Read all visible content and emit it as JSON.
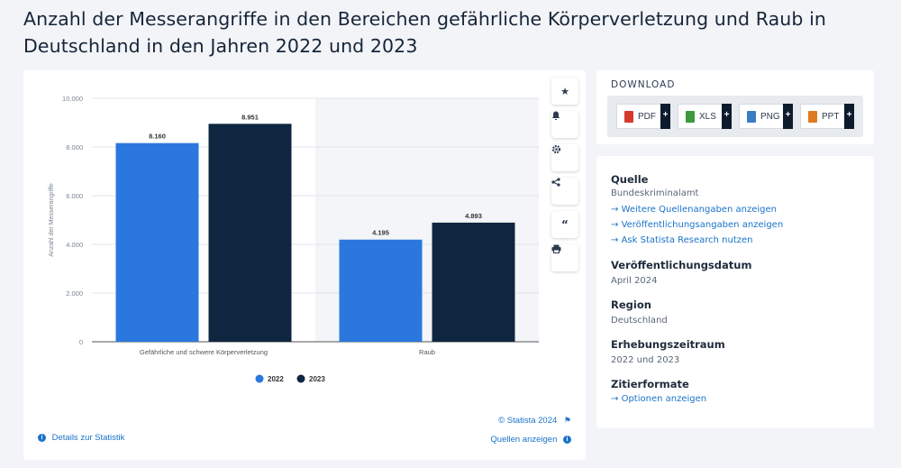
{
  "page": {
    "title": "Anzahl der Messerangriffe in den Bereichen gefährliche Körperverletzung und Raub in Deutschland in den Jahren 2022 und 2023"
  },
  "chart_data": {
    "type": "bar",
    "categories": [
      "Gefährliche und schwere Körperverletzung",
      "Raub"
    ],
    "series": [
      {
        "name": "2022",
        "values": [
          8160,
          4195
        ],
        "labels": [
          "8.160",
          "4.195"
        ],
        "color": "#2a78dd"
      },
      {
        "name": "2023",
        "values": [
          8951,
          4893
        ],
        "labels": [
          "8.951",
          "4.893"
        ],
        "color": "#0f2640"
      }
    ],
    "ylabel": "Anzahl der Messerangriffe",
    "xlabel": "",
    "ylim": [
      0,
      10000
    ],
    "yticks": [
      0,
      2000,
      4000,
      6000,
      8000,
      10000
    ],
    "ytick_labels": [
      "0",
      "2.000",
      "4.000",
      "6.000",
      "8.000",
      "10.000"
    ],
    "legend": [
      "2022",
      "2023"
    ],
    "legend_position": "bottom"
  },
  "chart_footer": {
    "copyright": "© Statista 2024",
    "details_link": "Details zur Statistik",
    "sources_link": "Quellen anzeigen"
  },
  "tools": [
    "star-icon",
    "bell-icon",
    "gear-icon",
    "share-icon",
    "quote-icon",
    "print-icon"
  ],
  "download": {
    "title": "DOWNLOAD",
    "buttons": [
      {
        "label": "PDF",
        "color": "#d33a2c"
      },
      {
        "label": "XLS",
        "color": "#3c9a3c"
      },
      {
        "label": "PNG",
        "color": "#3b7dc4"
      },
      {
        "label": "PPT",
        "color": "#e07a22"
      }
    ],
    "plus": "+"
  },
  "info": {
    "quelle_heading": "Quelle",
    "quelle_value": "Bundeskriminalamt",
    "links": [
      "Weitere Quellenangaben anzeigen",
      "Veröffentlichungsangaben anzeigen",
      "Ask Statista Research nutzen"
    ],
    "pub_heading": "Veröffentlichungsdatum",
    "pub_value": "April 2024",
    "region_heading": "Region",
    "region_value": "Deutschland",
    "period_heading": "Erhebungszeitraum",
    "period_value": "2022 und 2023",
    "cite_heading": "Zitierformate",
    "cite_link": "Optionen anzeigen",
    "arrow": "→"
  }
}
